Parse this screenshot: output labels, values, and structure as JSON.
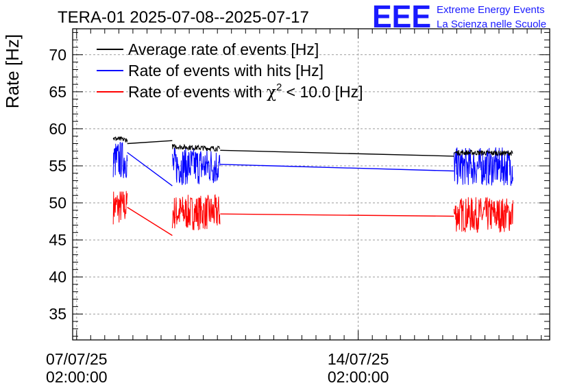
{
  "chart_data": {
    "type": "line",
    "title": "TERA-01 2025-07-08--2025-07-17",
    "ylabel": "Rate [Hz]",
    "xlabel": "",
    "ylim": [
      31.5,
      73.5
    ],
    "yticks": [
      35,
      40,
      45,
      50,
      55,
      60,
      65,
      70
    ],
    "xlim_days": [
      -0.14,
      16.8
    ],
    "x_ticks": [
      {
        "day": 0,
        "line1": "07/07/25",
        "line2": "02:00:00"
      },
      {
        "day": 10,
        "line1": "14/07/25",
        "line2": "02:00:00"
      }
    ],
    "grid": true,
    "legend_position": "top-left",
    "series": [
      {
        "name": "Average rate of events [Hz]",
        "color": "#000000",
        "noise": 0.35,
        "segments": [
          {
            "x0": 1.3,
            "x1": 1.8,
            "y": 58.7,
            "y1": 58.5
          },
          {
            "x0": 3.4,
            "x1": 5.1,
            "y": 57.6,
            "y1": 57.3
          },
          {
            "x0": 13.4,
            "x1": 15.5,
            "y": 56.8,
            "y1": 56.7
          }
        ],
        "gaps": [
          {
            "x0": 1.8,
            "y0": 58.0,
            "x1": 3.4,
            "y1": 58.4
          },
          {
            "x0": 5.1,
            "y0": 57.1,
            "x1": 13.4,
            "y1": 56.3
          }
        ]
      },
      {
        "name": "Rate of events with hits [Hz]",
        "color": "#0000ff",
        "noise": 2.6,
        "segments": [
          {
            "x0": 1.3,
            "x1": 1.8,
            "y": 55.8,
            "y1": 55.8
          },
          {
            "x0": 3.4,
            "x1": 5.1,
            "y": 55.0,
            "y1": 55.0
          },
          {
            "x0": 13.4,
            "x1": 15.5,
            "y": 54.9,
            "y1": 54.9
          }
        ],
        "gaps": [
          {
            "x0": 1.8,
            "y0": 56.8,
            "x1": 3.4,
            "y1": 52.3
          },
          {
            "x0": 5.1,
            "y0": 55.2,
            "x1": 13.4,
            "y1": 54.3
          }
        ]
      },
      {
        "name": "Rate of events with χ² < 10.0 [Hz]",
        "name_parts": [
          "Rate of events with ",
          "χ",
          "2",
          " < 10.0 [Hz]"
        ],
        "color": "#ff0000",
        "noise": 2.4,
        "segments": [
          {
            "x0": 1.3,
            "x1": 1.8,
            "y": 49.5,
            "y1": 49.5
          },
          {
            "x0": 3.4,
            "x1": 5.1,
            "y": 48.7,
            "y1": 48.7
          },
          {
            "x0": 13.4,
            "x1": 15.5,
            "y": 48.4,
            "y1": 48.4
          }
        ],
        "gaps": [
          {
            "x0": 1.8,
            "y0": 49.4,
            "x1": 3.4,
            "y1": 45.6
          },
          {
            "x0": 5.1,
            "y0": 48.5,
            "x1": 13.4,
            "y1": 48.2
          }
        ]
      }
    ]
  },
  "logo": {
    "text": "EEE",
    "line1": "Extreme Energy Events",
    "line2": "La Scienza nelle Scuole",
    "color": "#1a1aff"
  }
}
